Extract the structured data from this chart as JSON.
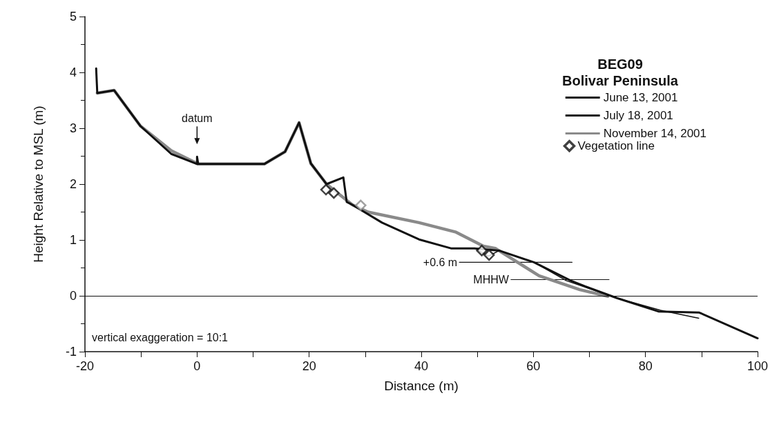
{
  "chart_data": {
    "type": "line",
    "title": "BEG09",
    "subtitle": "Bolivar Peninsula",
    "xlabel": "Distance (m)",
    "ylabel": "Height Relative to MSL (m)",
    "xlim": [
      -20,
      100
    ],
    "xticks": [
      -20,
      0,
      20,
      40,
      60,
      80,
      100
    ],
    "ylim": [
      -1,
      5
    ],
    "yticks": [
      -1,
      0,
      1,
      2,
      3,
      4,
      5
    ],
    "grid": false,
    "legend": "top right",
    "marker": "none",
    "line_style": "solid",
    "series": [
      {
        "name": "June 13, 2001",
        "color": "#111111",
        "x": [
          -18.0,
          -17.8,
          -14.8,
          -10.1,
          -4.6,
          0.2,
          12.0,
          15.7,
          18.2,
          20.3,
          23.1,
          26.1,
          26.7,
          27.7,
          33.0,
          39.6,
          45.3,
          49.5,
          52.0,
          53.9,
          60.1,
          65.9,
          74.9,
          82.7,
          89.5
        ],
        "values": [
          4.07,
          3.63,
          3.68,
          3.04,
          2.54,
          2.36,
          2.36,
          2.58,
          3.1,
          2.37,
          2.0,
          2.12,
          1.68,
          1.63,
          1.31,
          1.01,
          0.85,
          0.85,
          0.71,
          0.81,
          0.6,
          0.27,
          -0.04,
          -0.26,
          -0.4
        ]
      },
      {
        "name": "July 18, 2001",
        "color": "#111111",
        "x": [
          -18.0,
          -17.8,
          -14.8,
          -10.1,
          -4.6,
          0.0,
          0.0,
          0.2,
          12.0,
          15.7,
          18.2,
          20.3,
          23.1,
          26.1,
          26.7,
          27.7,
          33.0,
          39.6,
          45.3,
          49.5,
          53.9,
          60.1,
          66.7,
          69.2,
          74.9,
          82.3,
          89.6,
          100.0
        ],
        "values": [
          4.07,
          3.63,
          3.68,
          3.04,
          2.54,
          2.36,
          2.49,
          2.36,
          2.36,
          2.58,
          3.1,
          2.37,
          2.0,
          2.12,
          1.68,
          1.63,
          1.31,
          1.01,
          0.85,
          0.85,
          0.81,
          0.6,
          0.27,
          0.17,
          -0.04,
          -0.28,
          -0.3,
          -0.76
        ]
      },
      {
        "name": "November 14, 2001",
        "color": "#8a8a8a",
        "x": [
          -17.8,
          -14.8,
          -10.1,
          -4.6,
          0.2,
          12.0,
          15.7,
          18.2,
          20.3,
          23.1,
          27.7,
          30.5,
          39.6,
          46.2,
          51.1,
          53.2,
          61.0,
          68.3,
          73.3
        ],
        "values": [
          3.63,
          3.68,
          3.04,
          2.6,
          2.36,
          2.36,
          2.58,
          3.1,
          2.37,
          2.0,
          1.63,
          1.5,
          1.31,
          1.14,
          0.89,
          0.85,
          0.36,
          0.11,
          -0.01
        ]
      },
      {
        "name": "Vegetation line",
        "type": "scatter",
        "marker": "diamond",
        "color": "#111111",
        "colors": [
          "#111111",
          "#111111",
          "#8a8a8a",
          "#111111",
          "#111111"
        ],
        "x": [
          23.0,
          24.4,
          29.2,
          50.8,
          52.1
        ],
        "values": [
          1.9,
          1.84,
          1.62,
          0.81,
          0.73
        ]
      },
      {
        "color": "#111111",
        "x": [
          46.8,
          66.9
        ],
        "values": [
          0.6,
          0.6
        ]
      },
      {
        "color": "#111111",
        "x": [
          56.0,
          73.5
        ],
        "values": [
          0.29,
          0.29
        ]
      }
    ],
    "ref_lines": [
      {
        "axis": "y",
        "value": 0,
        "color": "#111111"
      }
    ],
    "annotations": [
      {
        "text": "datum",
        "x": 0,
        "y": 2.49
      },
      {
        "text": "+0.6 m",
        "x": 46.8,
        "y": 0.6
      },
      {
        "text": "MHHW",
        "x": 56.0,
        "y": 0.29
      },
      "vertical exaggeration = 10:1"
    ]
  }
}
